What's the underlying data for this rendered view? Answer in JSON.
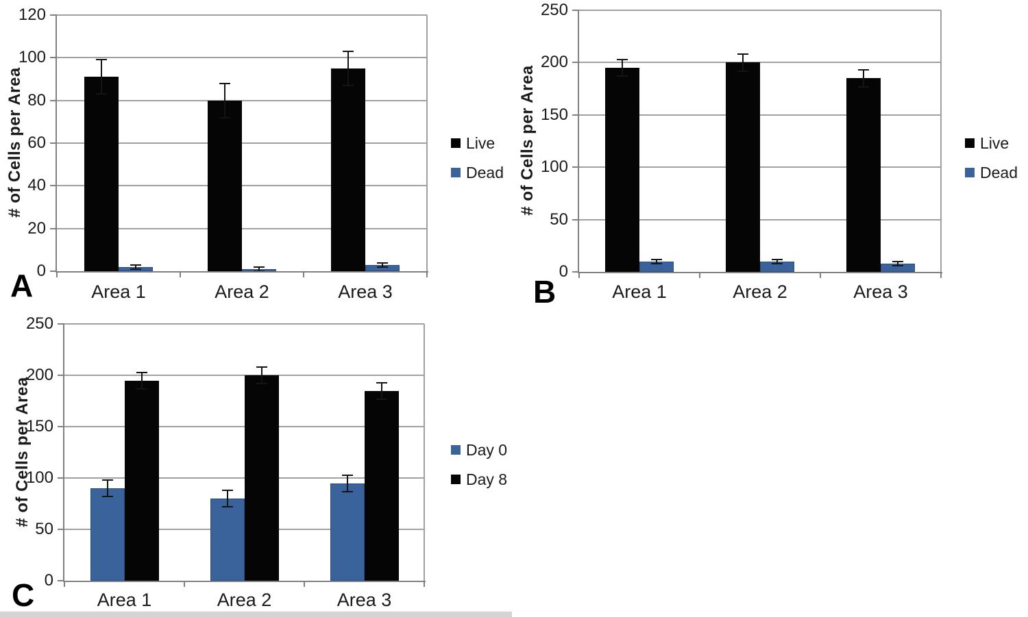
{
  "colors": {
    "bar_black": "#050505",
    "bar_blue": "#3A639C",
    "bar_blue_border": "#2B4C7E",
    "gridline": "#A0A0A0",
    "axis": "#808080",
    "error_bar": "#141414",
    "text": "#1A1A1A",
    "bottom_strip": "#D4D4D4"
  },
  "chart_data": [
    {
      "id": "panel-a",
      "panel_label": "A",
      "type": "bar",
      "title": "",
      "xlabel": "",
      "ylabel": "# of Cells per Area",
      "categories": [
        "Area 1",
        "Area 2",
        "Area 3"
      ],
      "series": [
        {
          "name": "Live",
          "color": "#050505",
          "values": [
            91,
            80,
            95
          ],
          "errors": [
            8,
            8,
            8
          ]
        },
        {
          "name": "Dead",
          "color": "#3A639C",
          "values": [
            2,
            1,
            3
          ],
          "errors": [
            1,
            1,
            1
          ]
        }
      ],
      "ylim": [
        0,
        120
      ],
      "ytick_step": 20,
      "grid": true,
      "legend_position": "right",
      "legend": [
        "Live",
        "Dead"
      ]
    },
    {
      "id": "panel-b",
      "panel_label": "B",
      "type": "bar",
      "title": "",
      "xlabel": "",
      "ylabel": "# of Cells per Area",
      "categories": [
        "Area 1",
        "Area 2",
        "Area 3"
      ],
      "series": [
        {
          "name": "Live",
          "color": "#050505",
          "values": [
            195,
            200,
            185
          ],
          "errors": [
            8,
            8,
            8
          ]
        },
        {
          "name": "Dead",
          "color": "#3A639C",
          "values": [
            10,
            10,
            8
          ],
          "errors": [
            2,
            2,
            2
          ]
        }
      ],
      "ylim": [
        0,
        250
      ],
      "ytick_step": 50,
      "grid": true,
      "legend_position": "right",
      "legend": [
        "Live",
        "Dead"
      ]
    },
    {
      "id": "panel-c",
      "panel_label": "C",
      "type": "bar",
      "title": "",
      "xlabel": "",
      "ylabel": "# of Cells per Area",
      "categories": [
        "Area 1",
        "Area 2",
        "Area 3"
      ],
      "series": [
        {
          "name": "Day 0",
          "color": "#3A639C",
          "values": [
            90,
            80,
            95
          ],
          "errors": [
            8,
            8,
            8
          ]
        },
        {
          "name": "Day 8",
          "color": "#050505",
          "values": [
            195,
            200,
            185
          ],
          "errors": [
            8,
            8,
            8
          ]
        }
      ],
      "ylim": [
        0,
        250
      ],
      "ytick_step": 50,
      "grid": true,
      "legend_position": "right",
      "legend": [
        "Day 0",
        "Day 8"
      ]
    }
  ]
}
